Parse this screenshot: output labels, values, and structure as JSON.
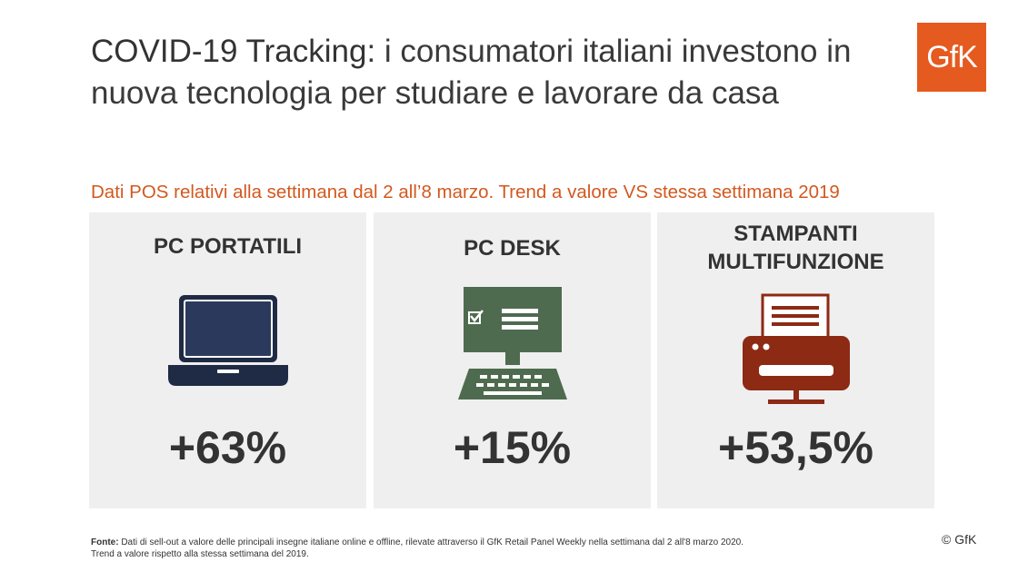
{
  "header": {
    "title_lead": "COVID-19 Tracking",
    "title_rest": ": i consumatori italiani investono in nuova tecnologia per studiare e lavorare da casa",
    "logo_text": "GfK"
  },
  "subtitle": "Dati POS relativi alla settimana dal 2 all’8 marzo. Trend a valore VS stessa settimana 2019",
  "panels": [
    {
      "title_line1": "PC PORTATILI",
      "title_line2": "",
      "icon": "laptop-icon",
      "value": "+63%"
    },
    {
      "title_line1": "PC DESK",
      "title_line2": "",
      "icon": "desktop-pc-icon",
      "value": "+15%"
    },
    {
      "title_line1": "STAMPANTI",
      "title_line2": "MULTIFUNZIONE",
      "icon": "printer-icon",
      "value": "+53,5%"
    }
  ],
  "footer": {
    "source_label": "Fonte:",
    "source_text": " Dati di sell-out a valore delle principali insegne italiane online e offline, rilevate attraverso il GfK Retail Panel Weekly nella settimana dal 2 all'8 marzo 2020.",
    "line2": "Trend a valore rispetto alla stessa settimana del 2019."
  },
  "copyright": "© GfK",
  "colors": {
    "accent": "#d3581f",
    "logo_bg": "#e55a1f",
    "laptop": "#1f2b45",
    "desktop": "#4f6b4f",
    "printer": "#8c2a14",
    "panel_bg": "#efefef"
  }
}
